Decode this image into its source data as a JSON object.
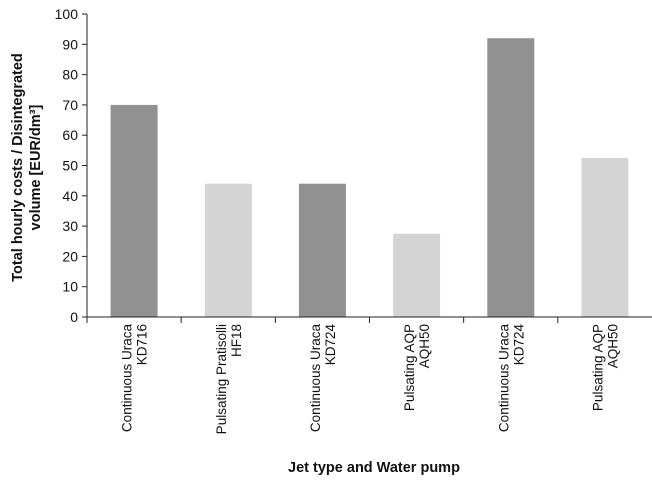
{
  "chart_data": {
    "type": "bar",
    "categories": [
      [
        "Continuous Uraca",
        "KD716"
      ],
      [
        "Pulsating Pratisolli",
        "HF18"
      ],
      [
        "Continuous Uraca",
        "KD724"
      ],
      [
        "Pulsating AQP",
        "AQH50"
      ],
      [
        "Continuous Uraca",
        "KD724"
      ],
      [
        "Pulsating AQP",
        "AQH50"
      ]
    ],
    "values": [
      70,
      44,
      44,
      27.5,
      92,
      52.5
    ],
    "bar_colors": [
      "#919191",
      "#d4d4d4",
      "#919191",
      "#d4d4d4",
      "#919191",
      "#d4d4d4"
    ],
    "title": "",
    "xlabel": "Jet type and Water pump",
    "ylabel": [
      "Total hourly costs / Disintegrated",
      "volume [EUR/dm³]"
    ],
    "ylim": [
      0,
      100
    ],
    "yticks": [
      0,
      10,
      20,
      30,
      40,
      50,
      60,
      70,
      80,
      90,
      100
    ],
    "grid": false,
    "legend": "none"
  }
}
